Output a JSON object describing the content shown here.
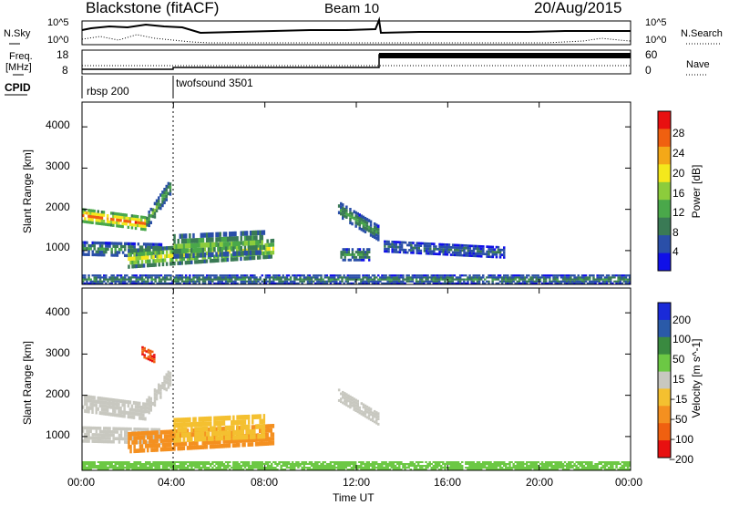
{
  "header": {
    "station": "Blackstone (fitACF)",
    "beam": "Beam 10",
    "date": "20/Aug/2015"
  },
  "side_labels": {
    "nsky": "N.Sky",
    "nsearch": "N.Search",
    "freq_top": "Freq.",
    "freq_unit": "[MHz]",
    "nave": "Nave",
    "cpid": "CPID"
  },
  "noise_panel": {
    "left_ticks": [
      "10^5",
      "10^0"
    ],
    "right_ticks": [
      "10^5",
      "10^0"
    ]
  },
  "freq_panel": {
    "left_ticks": [
      "18",
      "8"
    ],
    "right_ticks": [
      "60",
      "0"
    ]
  },
  "cpid_panel": {
    "programs": [
      {
        "name": "rbsp 200",
        "start_hour": 0
      },
      {
        "name": "twofsound 3501",
        "start_hour": 4
      }
    ]
  },
  "chart_data": [
    {
      "type": "heatmap",
      "quantity": "power",
      "ylabel": "Slant Range [km]",
      "yticks": [
        1000,
        2000,
        3000,
        4000
      ],
      "ylim": [
        180,
        4600
      ],
      "xlim": [
        0,
        24
      ],
      "colorbar": {
        "label": "Power [dB]",
        "ticks": [
          4,
          8,
          12,
          16,
          20,
          24,
          28
        ],
        "range": [
          0,
          30
        ],
        "colors": [
          "#1010e8",
          "#2a4fa8",
          "#3a7a55",
          "#4aa84a",
          "#8ccc3c",
          "#f4e81c",
          "#f4a818",
          "#f06010",
          "#e81010"
        ]
      },
      "echo_regions": [
        {
          "t_start": 0.0,
          "t_end": 2.8,
          "r_center": 1850,
          "r_center_end": 1650,
          "width": 180,
          "value": 25
        },
        {
          "t_start": 2.8,
          "t_end": 3.9,
          "r_center": 1700,
          "r_center_end": 2600,
          "width": 200,
          "value": 12
        },
        {
          "t_start": 0.0,
          "t_end": 3.5,
          "r_center": 1050,
          "r_center_end": 1000,
          "width": 180,
          "value": 10
        },
        {
          "t_start": 2.0,
          "t_end": 8.4,
          "r_center": 800,
          "r_center_end": 1050,
          "width": 240,
          "value": 18
        },
        {
          "t_start": 4.0,
          "t_end": 8.0,
          "r_center": 1100,
          "r_center_end": 1200,
          "width": 300,
          "value": 13
        },
        {
          "t_start": 11.2,
          "t_end": 13.0,
          "r_center": 2000,
          "r_center_end": 1400,
          "width": 200,
          "value": 11
        },
        {
          "t_start": 11.3,
          "t_end": 12.6,
          "r_center": 900,
          "r_center_end": 900,
          "width": 160,
          "value": 10
        },
        {
          "t_start": 13.2,
          "t_end": 18.5,
          "r_center": 1100,
          "r_center_end": 950,
          "width": 150,
          "value": 7
        },
        {
          "t_start": 0.0,
          "t_end": 24.0,
          "r_center": 300,
          "r_center_end": 300,
          "width": 120,
          "value": 9
        }
      ]
    },
    {
      "type": "heatmap",
      "quantity": "velocity",
      "ylabel": "Slant Range [km]",
      "yticks": [
        1000,
        2000,
        3000,
        4000
      ],
      "ylim": [
        180,
        4600
      ],
      "xlim": [
        0,
        24
      ],
      "xlabel": "Time UT",
      "xticks": [
        "00:00",
        "04:00",
        "08:00",
        "12:00",
        "16:00",
        "20:00",
        "00:00"
      ],
      "colorbar": {
        "label": "Velocity [m s^-1]",
        "ticks": [
          "200",
          "100",
          "50",
          "15",
          "−15",
          "−50",
          "−100",
          "−200"
        ],
        "colors": [
          "#1a2ad8",
          "#2a5aa8",
          "#3a8a40",
          "#6cc844",
          "#c8c8c0",
          "#f4c030",
          "#f49020",
          "#f06010",
          "#e81010"
        ]
      },
      "echo_regions": [
        {
          "t_start": 0.0,
          "t_end": 2.8,
          "r_center": 1800,
          "r_center_end": 1600,
          "width": 220,
          "value": 0
        },
        {
          "t_start": 2.8,
          "t_end": 3.9,
          "r_center": 1700,
          "r_center_end": 2500,
          "width": 220,
          "value": 0
        },
        {
          "t_start": 0.0,
          "t_end": 3.5,
          "r_center": 1050,
          "r_center_end": 1000,
          "width": 200,
          "value": 0
        },
        {
          "t_start": 2.0,
          "t_end": 8.4,
          "r_center": 850,
          "r_center_end": 1050,
          "width": 260,
          "value": -60
        },
        {
          "t_start": 4.0,
          "t_end": 8.0,
          "r_center": 1150,
          "r_center_end": 1250,
          "width": 300,
          "value": -40
        },
        {
          "t_start": 2.6,
          "t_end": 3.2,
          "r_center": 3050,
          "r_center_end": 2900,
          "width": 140,
          "value": -200
        },
        {
          "t_start": 11.2,
          "t_end": 13.0,
          "r_center": 2000,
          "r_center_end": 1400,
          "width": 160,
          "value": 0
        },
        {
          "t_start": 0.0,
          "t_end": 24.0,
          "r_center": 290,
          "r_center_end": 290,
          "width": 110,
          "value": 25
        }
      ]
    }
  ]
}
